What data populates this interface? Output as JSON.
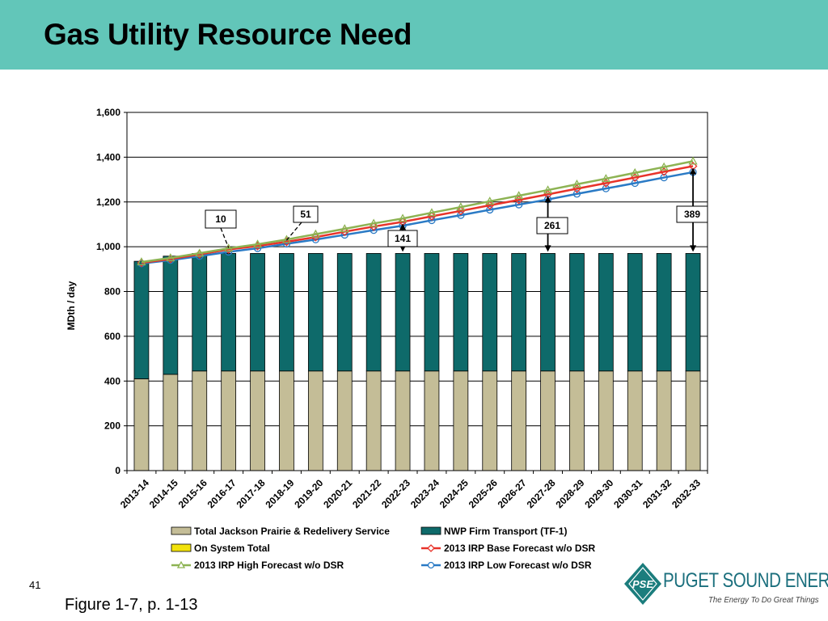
{
  "title": "Gas Utility Resource Need",
  "page_number": "41",
  "caption": "Figure 1-7, p. 1-13",
  "logo": {
    "brand": "PUGET SOUND ENERGY",
    "mark": "PSE",
    "tagline": "The Energy To Do Great Things"
  },
  "colors": {
    "title_bar": "#62c6b9",
    "jackson_prairie": "#c4bd97",
    "nwp": "#0e6a6a",
    "on_system": "#f2e20c",
    "base": "#e8332a",
    "high": "#8db353",
    "low": "#2a7ac5"
  },
  "chart_data": {
    "type": "bar",
    "stacked": true,
    "title": "",
    "xlabel": "",
    "ylabel": "MDth / day",
    "ylim": [
      0,
      1600
    ],
    "yticks": [
      "0",
      "200",
      "400",
      "600",
      "800",
      "1,000",
      "1,200",
      "1,400",
      "1,600"
    ],
    "categories": [
      "2013-14",
      "2014-15",
      "2015-16",
      "2016-17",
      "2017-18",
      "2018-19",
      "2019-20",
      "2020-21",
      "2021-22",
      "2022-23",
      "2023-24",
      "2024-25",
      "2025-26",
      "2026-27",
      "2027-28",
      "2028-29",
      "2029-30",
      "2030-31",
      "2031-32",
      "2032-33"
    ],
    "bar_series": [
      {
        "name": "Total Jackson Prairie & Redelivery Service",
        "values": [
          410,
          430,
          445,
          445,
          445,
          445,
          445,
          445,
          445,
          445,
          445,
          445,
          445,
          445,
          445,
          445,
          445,
          445,
          445,
          445
        ]
      },
      {
        "name": "NWP Firm Transport (TF-1)",
        "values": [
          525,
          528,
          525,
          525,
          525,
          525,
          525,
          525,
          525,
          525,
          525,
          525,
          525,
          525,
          525,
          525,
          525,
          525,
          525,
          525
        ]
      },
      {
        "name": "On System Total",
        "values": [
          0,
          0,
          0,
          0,
          0,
          0,
          0,
          0,
          0,
          0,
          0,
          0,
          0,
          0,
          0,
          0,
          0,
          0,
          0,
          0
        ]
      }
    ],
    "line_series": [
      {
        "name": "2013 IRP Base Forecast w/o DSR",
        "marker": "diamond",
        "values": [
          928,
          945,
          966,
          988,
          1003,
          1022,
          1043,
          1067,
          1090,
          1111,
          1136,
          1160,
          1185,
          1209,
          1234,
          1259,
          1284,
          1309,
          1335,
          1360
        ]
      },
      {
        "name": "2013 IRP High Forecast w/o DSR",
        "marker": "triangle",
        "values": [
          932,
          950,
          971,
          993,
          1011,
          1032,
          1056,
          1080,
          1104,
          1126,
          1152,
          1177,
          1203,
          1228,
          1253,
          1279,
          1304,
          1330,
          1356,
          1382
        ]
      },
      {
        "name": "2013 IRP Low Forecast w/o DSR",
        "marker": "circle",
        "values": [
          925,
          940,
          958,
          977,
          993,
          1013,
          1032,
          1053,
          1074,
          1094,
          1118,
          1141,
          1165,
          1188,
          1211,
          1236,
          1260,
          1284,
          1309,
          1333
        ]
      }
    ],
    "legend": {
      "placement": "bottom",
      "entries": [
        "Total Jackson Prairie & Redelivery Service",
        "NWP Firm Transport (TF-1)",
        "On System Total",
        "2013 IRP Base Forecast w/o DSR",
        "2013 IRP High Forecast w/o DSR",
        "2013 IRP Low Forecast w/o DSR"
      ]
    },
    "annotations": [
      {
        "text": "10",
        "category": "2016-17",
        "style": "dashed"
      },
      {
        "text": "51",
        "category": "2018-19",
        "style": "dashed"
      },
      {
        "text": "141",
        "category": "2022-23",
        "style": "arrow"
      },
      {
        "text": "261",
        "category": "2027-28",
        "style": "arrow"
      },
      {
        "text": "389",
        "category": "2032-33",
        "style": "arrow"
      }
    ],
    "grid": true
  }
}
